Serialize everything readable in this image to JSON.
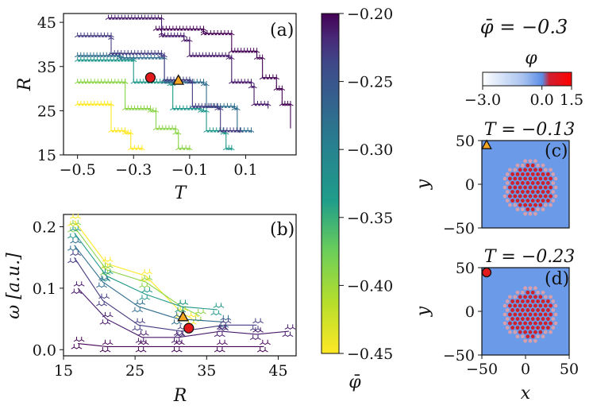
{
  "colors": {
    "viridis": [
      "#440154",
      "#482777",
      "#3f4a8a",
      "#31678e",
      "#26838f",
      "#1f9d8a",
      "#6cce5a",
      "#b6de2b",
      "#fee825"
    ],
    "marker_circle": "#e31a1c",
    "marker_triangle": "#f5a623",
    "sim_background": "#6b9ae8",
    "dot_red": "#d0202a",
    "dot_halo": "#f0a0a0"
  },
  "chart_data": [
    {
      "id": "a",
      "type": "scatter",
      "panel_label": "(a)",
      "xlabel": "T",
      "ylabel": "R",
      "xlim": [
        -0.55,
        0.28
      ],
      "ylim": [
        15,
        47
      ],
      "xticks": [
        "−0.5",
        "−0.3",
        "−0.1",
        "0.1"
      ],
      "xtick_values": [
        -0.5,
        -0.3,
        -0.1,
        0.1
      ],
      "yticks": [
        "15",
        "25",
        "35",
        "45"
      ],
      "ytick_values": [
        15,
        25,
        35,
        45
      ],
      "series": [
        {
          "phi": -0.45,
          "x": [
            -0.5,
            -0.38
          ],
          "y": [
            26.5,
            26.5
          ],
          "steps": [
            [
              -0.38,
              20.5
            ],
            [
              -0.33,
              20.0
            ],
            [
              -0.31,
              16.5
            ],
            [
              -0.27,
              16.0
            ]
          ]
        },
        {
          "phi": -0.4,
          "x": [
            -0.5,
            -0.33
          ],
          "y": [
            31.5,
            31.5
          ],
          "steps": [
            [
              -0.33,
              25.5
            ],
            [
              -0.24,
              25.0
            ],
            [
              -0.22,
              21.0
            ],
            [
              -0.15,
              20.0
            ],
            [
              -0.14,
              16.5
            ],
            [
              -0.1,
              16.0
            ]
          ]
        },
        {
          "phi": -0.35,
          "x": [
            -0.5,
            -0.3
          ],
          "y": [
            36.5,
            36.5
          ],
          "steps": [
            [
              -0.3,
              31.5
            ],
            [
              -0.17,
              31.0
            ],
            [
              -0.16,
              25.5
            ],
            [
              -0.06,
              25.0
            ],
            [
              -0.04,
              20.5
            ],
            [
              0.02,
              20.0
            ],
            [
              0.03,
              16.5
            ],
            [
              0.05,
              16.0
            ]
          ]
        },
        {
          "phi": -0.3,
          "x": [
            -0.5,
            -0.35
          ],
          "y": [
            37.5,
            37.5
          ],
          "steps": [
            [
              -0.35,
              37.0
            ],
            [
              -0.2,
              37.0
            ],
            [
              -0.19,
              31.5
            ],
            [
              -0.05,
              31.0
            ],
            [
              -0.04,
              26.0
            ],
            [
              0.06,
              25.5
            ],
            [
              0.07,
              20.5
            ],
            [
              0.12,
              20.0
            ]
          ]
        },
        {
          "phi": -0.25,
          "x": [
            -0.5,
            -0.38
          ],
          "y": [
            42.0,
            41.5
          ],
          "steps": [
            [
              -0.38,
              38.0
            ],
            [
              -0.2,
              37.5
            ],
            [
              -0.19,
              32.0
            ],
            [
              -0.1,
              31.5
            ],
            [
              -0.09,
              26.0
            ],
            [
              0.0,
              25.5
            ],
            [
              0.01,
              20.5
            ],
            [
              0.08,
              20.0
            ]
          ]
        },
        {
          "phi": -0.22,
          "x": [
            -0.39,
            -0.2
          ],
          "y": [
            46.0,
            42.5
          ],
          "steps": [
            [
              -0.2,
              42.0
            ],
            [
              -0.12,
              41.0
            ],
            [
              -0.1,
              37.5
            ],
            [
              0.04,
              37.0
            ],
            [
              0.05,
              31.5
            ],
            [
              0.12,
              30.5
            ],
            [
              0.13,
              26.5
            ],
            [
              0.18,
              25.5
            ]
          ]
        },
        {
          "phi": -0.2,
          "x": [
            -0.22,
            -0.05
          ],
          "y": [
            43.5,
            43.0
          ],
          "steps": [
            [
              -0.05,
              42.5
            ],
            [
              0.05,
              38.5
            ],
            [
              0.14,
              37.0
            ],
            [
              0.16,
              32.5
            ],
            [
              0.21,
              30.0
            ],
            [
              0.23,
              26.5
            ],
            [
              0.26,
              21.0
            ]
          ]
        }
      ],
      "highlight": [
        {
          "shape": "circle",
          "x": -0.24,
          "y": 32.5
        },
        {
          "shape": "triangle",
          "x": -0.14,
          "y": 31.8
        }
      ]
    },
    {
      "id": "b",
      "type": "line",
      "panel_label": "(b)",
      "xlabel": "R",
      "ylabel": "ω [a.u.]",
      "xlim": [
        15,
        47.5
      ],
      "ylim": [
        -0.01,
        0.22
      ],
      "xticks": [
        "15",
        "25",
        "35",
        "45"
      ],
      "xtick_values": [
        15,
        25,
        35,
        45
      ],
      "yticks": [
        "0.0",
        "0.1",
        "0.2"
      ],
      "ytick_values": [
        0,
        0.1,
        0.2
      ],
      "series": [
        {
          "phi": -0.45,
          "x": [
            16.5,
            21,
            26.5,
            31.5,
            33
          ],
          "y": [
            0.21,
            0.14,
            0.12,
            0.06,
            0.05
          ]
        },
        {
          "phi": -0.4,
          "x": [
            16.5,
            21,
            26.5,
            31.5,
            34
          ],
          "y": [
            0.2,
            0.13,
            0.11,
            0.07,
            0.055
          ]
        },
        {
          "phi": -0.35,
          "x": [
            16.5,
            21,
            26.5,
            31.5,
            36.5
          ],
          "y": [
            0.19,
            0.12,
            0.09,
            0.07,
            0.065
          ]
        },
        {
          "phi": -0.3,
          "x": [
            16.5,
            20.5,
            25.5,
            31,
            37.5
          ],
          "y": [
            0.17,
            0.11,
            0.07,
            0.05,
            0.045
          ]
        },
        {
          "phi": -0.25,
          "x": [
            16.5,
            20.5,
            25.5,
            31.5,
            37.5,
            42
          ],
          "y": [
            0.15,
            0.08,
            0.04,
            0.03,
            0.04,
            0.04
          ]
        },
        {
          "phi": -0.22,
          "x": [
            17,
            21,
            26,
            31,
            37,
            42,
            46.5
          ],
          "y": [
            0.1,
            0.05,
            0.02,
            0.02,
            0.03,
            0.025,
            0.03
          ]
        },
        {
          "phi": -0.2,
          "x": [
            17,
            21,
            26,
            31,
            37,
            43
          ],
          "y": [
            0.01,
            0.005,
            0.005,
            0.005,
            0.005,
            0.005
          ]
        }
      ],
      "highlight": [
        {
          "shape": "triangle",
          "x": 31.7,
          "y": 0.053
        },
        {
          "shape": "circle",
          "x": 32.5,
          "y": 0.035
        }
      ]
    }
  ],
  "colorbar": {
    "label": "φ̄",
    "ticks": [
      "−0.20",
      "−0.25",
      "−0.30",
      "−0.35",
      "−0.40",
      "−0.45"
    ],
    "tick_values": [
      -0.2,
      -0.25,
      -0.3,
      -0.35,
      -0.4,
      -0.45
    ],
    "range": [
      -0.45,
      -0.2
    ]
  },
  "snapshots": {
    "title": "φ̄ = −0.3",
    "phi_bar": {
      "label": "φ",
      "ticks": [
        "−3.0",
        "0.0",
        "1.5"
      ],
      "tick_values": [
        -3.0,
        0.0,
        1.5
      ],
      "range": [
        -3.0,
        1.5
      ]
    },
    "panels": [
      {
        "panel_label": "(c)",
        "title": "T = −0.13",
        "marker": "triangle",
        "xlabel": "x",
        "ylabel": "y",
        "yticks": [
          "50",
          "0",
          "−50"
        ],
        "xticks": [],
        "lim": [
          -50,
          50
        ]
      },
      {
        "panel_label": "(d)",
        "title": "T = −0.23",
        "marker": "circle",
        "xlabel": "x",
        "ylabel": "y",
        "yticks": [
          "50",
          "0",
          "−50"
        ],
        "xticks": [
          "−50",
          "0",
          "50"
        ],
        "lim": [
          -50,
          50
        ]
      }
    ]
  }
}
